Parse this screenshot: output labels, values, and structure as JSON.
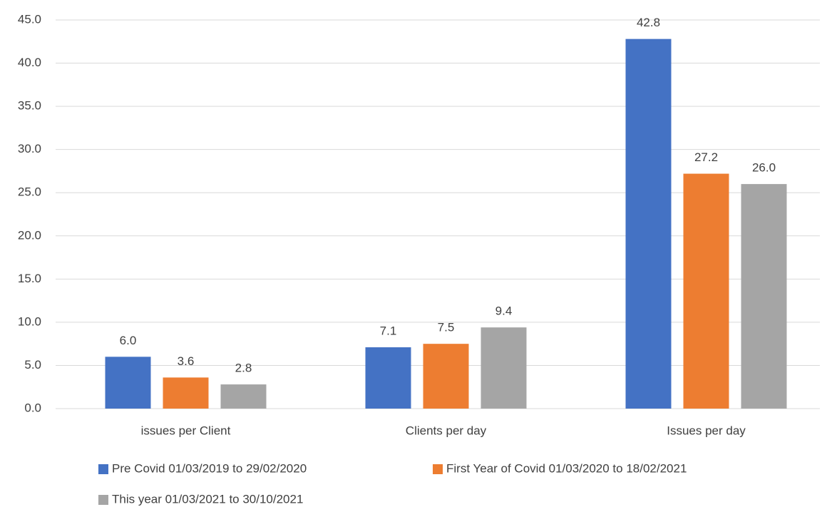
{
  "chart_data": {
    "type": "bar",
    "categories": [
      "issues per Client",
      "Clients per day",
      "Issues per day"
    ],
    "series": [
      {
        "name": "Pre Covid 01/03/2019 to 29/02/2020",
        "color": "#4472c4",
        "values": [
          6.0,
          7.1,
          42.8
        ],
        "value_labels": [
          "6.0",
          "7.1",
          "42.8"
        ]
      },
      {
        "name": "First Year of Covid 01/03/2020 to 18/02/2021",
        "color": "#ed7d31",
        "values": [
          3.6,
          7.5,
          27.2
        ],
        "value_labels": [
          "3.6",
          "7.5",
          "27.2"
        ]
      },
      {
        "name": "This year 01/03/2021 to 30/10/2021",
        "color": "#a5a5a5",
        "values": [
          2.8,
          9.4,
          26.0
        ],
        "value_labels": [
          "2.8",
          "9.4",
          "26.0"
        ]
      }
    ],
    "ylim": [
      0,
      45
    ],
    "yticks": [
      {
        "value": 0,
        "label": "0.0"
      },
      {
        "value": 5,
        "label": "5.0"
      },
      {
        "value": 10,
        "label": "10.0"
      },
      {
        "value": 15,
        "label": "15.0"
      },
      {
        "value": 20,
        "label": "20.0"
      },
      {
        "value": 25,
        "label": "25.0"
      },
      {
        "value": 30,
        "label": "30.0"
      },
      {
        "value": 35,
        "label": "35.0"
      },
      {
        "value": 40,
        "label": "40.0"
      },
      {
        "value": 45,
        "label": "45.0"
      }
    ],
    "grid": true,
    "legend": "bottom"
  }
}
